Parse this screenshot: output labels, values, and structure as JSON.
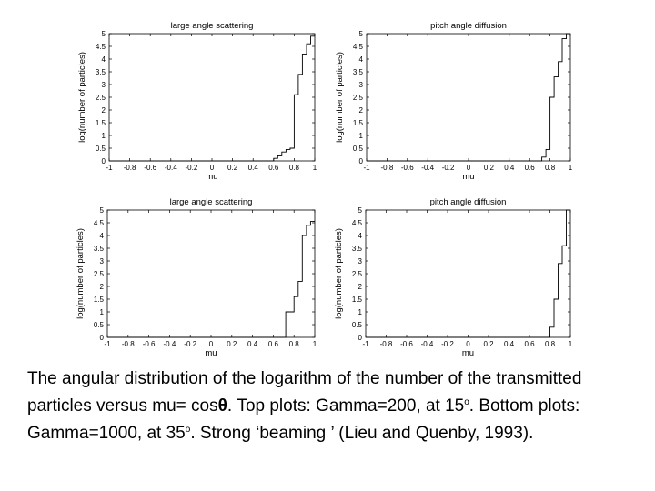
{
  "chart_data": [
    {
      "type": "line",
      "title": "large angle scattering",
      "xlabel": "mu",
      "ylabel": "log(number of particles)",
      "xlim": [
        -1,
        1
      ],
      "ylim": [
        0,
        5
      ],
      "x_ticks": [
        "-1",
        "-0.8",
        "-0.6",
        "-0.4",
        "-0.2",
        "0",
        "0.2",
        "0.4",
        "0.6",
        "0.8",
        "1"
      ],
      "y_ticks": [
        "0",
        "0.5",
        "1",
        "1.5",
        "2",
        "2.5",
        "3",
        "3.5",
        "4",
        "4.5",
        "5"
      ],
      "grid": false,
      "series": [
        {
          "x": [
            -1,
            0.6,
            0.6,
            0.64,
            0.64,
            0.68,
            0.68,
            0.72,
            0.72,
            0.76,
            0.76,
            0.8,
            0.8,
            0.84,
            0.84,
            0.88,
            0.88,
            0.92,
            0.92,
            0.96,
            0.96,
            1
          ],
          "y": [
            0,
            0,
            0.1,
            0.1,
            0.2,
            0.2,
            0.35,
            0.35,
            0.45,
            0.45,
            0.5,
            0.5,
            2.6,
            2.6,
            3.4,
            3.4,
            4.2,
            4.2,
            4.6,
            4.6,
            4.9,
            4.9
          ]
        }
      ]
    },
    {
      "type": "line",
      "title": "pitch angle diffusion",
      "xlabel": "mu",
      "ylabel": "log(number of particles)",
      "xlim": [
        -1,
        1
      ],
      "ylim": [
        0,
        5
      ],
      "x_ticks": [
        "-1",
        "-0.8",
        "-0.6",
        "-0.4",
        "-0.2",
        "0",
        "0.2",
        "0.4",
        "0.6",
        "0.8",
        "1"
      ],
      "y_ticks": [
        "0",
        "0.5",
        "1",
        "1.5",
        "2",
        "2.5",
        "3",
        "3.5",
        "4",
        "4.5",
        "5"
      ],
      "grid": false,
      "series": [
        {
          "x": [
            -1,
            0.72,
            0.72,
            0.76,
            0.76,
            0.8,
            0.8,
            0.84,
            0.84,
            0.88,
            0.88,
            0.92,
            0.92,
            0.96,
            0.96,
            1
          ],
          "y": [
            0,
            0,
            0.15,
            0.15,
            0.45,
            0.45,
            2.5,
            2.5,
            3.3,
            3.3,
            3.9,
            3.9,
            4.8,
            4.8,
            5.0,
            5.0
          ]
        }
      ]
    },
    {
      "type": "line",
      "title": "large angle scattering",
      "xlabel": "mu",
      "ylabel": "log(number of particles)",
      "xlim": [
        -1,
        1
      ],
      "ylim": [
        0,
        5
      ],
      "x_ticks": [
        "-1",
        "-0.8",
        "-0.6",
        "-0.4",
        "-0.2",
        "0",
        "0.2",
        "0.4",
        "0.6",
        "0.8",
        "1"
      ],
      "y_ticks": [
        "0",
        "0.5",
        "1",
        "1.5",
        "2",
        "2.5",
        "3",
        "3.5",
        "4",
        "4.5",
        "5"
      ],
      "grid": false,
      "series": [
        {
          "x": [
            -1,
            0.72,
            0.72,
            0.8,
            0.8,
            0.84,
            0.84,
            0.88,
            0.88,
            0.92,
            0.92,
            0.96,
            0.96,
            1
          ],
          "y": [
            0,
            0,
            1.0,
            1.0,
            1.6,
            1.6,
            2.2,
            2.2,
            4.0,
            4.0,
            4.4,
            4.4,
            4.55,
            4.55
          ]
        }
      ]
    },
    {
      "type": "line",
      "title": "pitch angle diffusion",
      "xlabel": "mu",
      "ylabel": "log(number of particles)",
      "xlim": [
        -1,
        1
      ],
      "ylim": [
        0,
        5
      ],
      "x_ticks": [
        "-1",
        "-0.8",
        "-0.6",
        "-0.4",
        "-0.2",
        "0",
        "0.2",
        "0.4",
        "0.6",
        "0.8",
        "1"
      ],
      "y_ticks": [
        "0",
        "0.5",
        "1",
        "1.5",
        "2",
        "2.5",
        "3",
        "3.5",
        "4",
        "4.5",
        "5"
      ],
      "grid": false,
      "series": [
        {
          "x": [
            -1,
            0.8,
            0.8,
            0.84,
            0.84,
            0.88,
            0.88,
            0.92,
            0.92,
            0.96,
            0.96,
            1
          ],
          "y": [
            0,
            0,
            0.4,
            0.4,
            1.5,
            1.5,
            2.9,
            2.9,
            3.6,
            3.6,
            5.0,
            5.0
          ]
        }
      ]
    }
  ],
  "caption": {
    "part1": "The angular distribution of the logarithm of the number of the transmitted particles versus mu= cos",
    "theta": "θ",
    "part2": ". Top plots: Gamma=200, at 15",
    "deg1": "o",
    "part3": ".  Bottom plots: Gamma=1000, at 35",
    "deg2": "o",
    "part4": ".  Strong ‘beaming ’ (Lieu and Quenby, 1993)."
  }
}
